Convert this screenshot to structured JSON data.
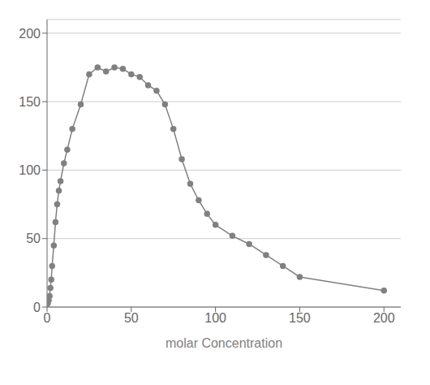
{
  "chart_data": {
    "type": "line",
    "x": [
      0,
      0.5,
      1,
      1.5,
      2,
      2.5,
      3,
      4,
      5,
      6,
      7,
      8,
      10,
      12,
      15,
      20,
      25,
      30,
      35,
      40,
      45,
      50,
      55,
      60,
      65,
      70,
      75,
      80,
      85,
      90,
      95,
      100,
      110,
      120,
      130,
      140,
      150,
      200
    ],
    "values": [
      2,
      3,
      5,
      8,
      14,
      20,
      30,
      45,
      62,
      75,
      85,
      92,
      105,
      115,
      130,
      148,
      170,
      175,
      172,
      175,
      174,
      170,
      168,
      162,
      158,
      148,
      130,
      108,
      90,
      78,
      68,
      60,
      52,
      46,
      38,
      30,
      22,
      12
    ],
    "xlabel": "molar Concentration",
    "xlim": [
      0,
      210
    ],
    "ylim": [
      0,
      210
    ],
    "xticks": [
      0,
      50,
      100,
      150,
      200
    ],
    "yticks": [
      0,
      50,
      100,
      150,
      200
    ],
    "color": "#808080",
    "marker": "circle",
    "grid": true
  }
}
